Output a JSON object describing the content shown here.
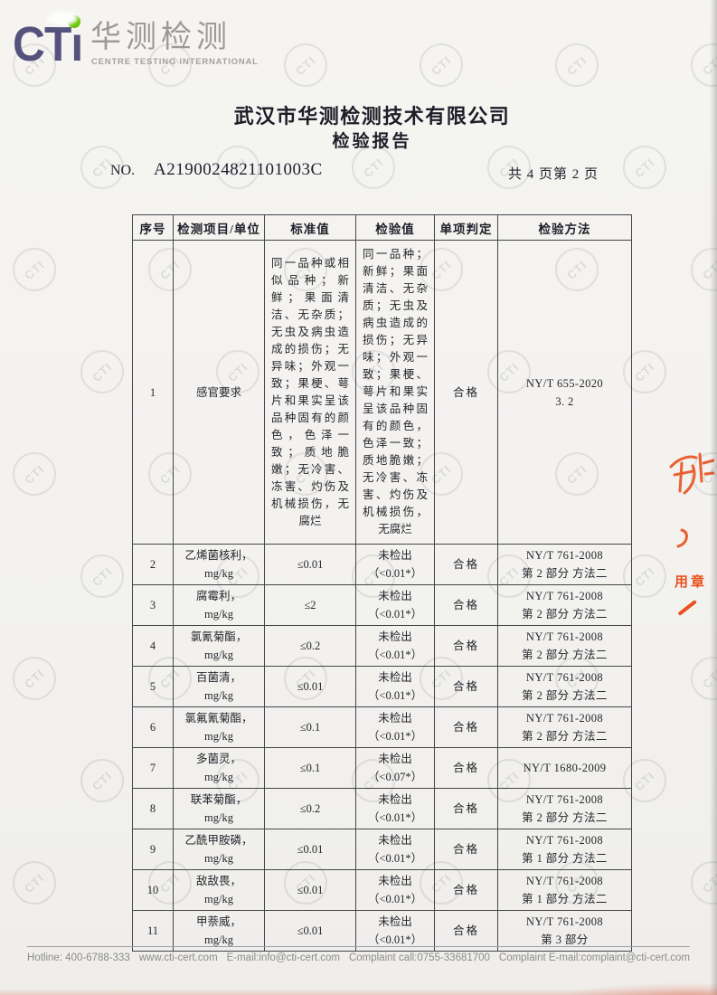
{
  "logo": {
    "acronym": "CT",
    "acronym_i": "ı",
    "watermark_text": "CTI",
    "cn": "华测检测",
    "en": "CENTRE TESTING INTERNATIONAL"
  },
  "header": {
    "company": "武汉市华测检测技术有限公司",
    "title": "检验报告",
    "no_label": "NO.",
    "report_no": "A2190024821101003C",
    "page_info": "共 4 页第 2 页"
  },
  "table": {
    "headers": [
      "序号",
      "检测项目/单位",
      "标准值",
      "检验值",
      "单项判定",
      "检验方法"
    ],
    "rows": [
      {
        "no": "1",
        "item": "感官要求",
        "standard": "同一品种或相似品种；新鲜；果面清洁、无杂质；无虫及病虫造成的损伤；无异味；外观一致；果梗、萼片和果实呈该品种固有的颜色，色泽一致；质地脆嫩；无冷害、冻害、灼伤及机械损伤，无腐烂",
        "value": "同一品种；新鲜；果面清洁、无杂质；无虫及病虫造成的损伤；无异味；外观一致；果梗、萼片和果实呈该品种固有的颜色，色泽一致；质地脆嫩；无冷害、冻害、灼伤及机械损伤，无腐烂",
        "judgment": "合格",
        "method": "NY/T 655-2020\n3. 2"
      },
      {
        "no": "2",
        "item": "乙烯菌核利，\nmg/kg",
        "standard": "≤0.01",
        "value": "未检出\n（<0.01*）",
        "judgment": "合格",
        "method": "NY/T 761-2008\n第 2 部分 方法二"
      },
      {
        "no": "3",
        "item": "腐霉利，\nmg/kg",
        "standard": "≤2",
        "value": "未检出\n（<0.01*）",
        "judgment": "合格",
        "method": "NY/T 761-2008\n第 2 部分 方法二"
      },
      {
        "no": "4",
        "item": "氯氰菊酯，\nmg/kg",
        "standard": "≤0.2",
        "value": "未检出\n（<0.01*）",
        "judgment": "合格",
        "method": "NY/T 761-2008\n第 2 部分 方法二"
      },
      {
        "no": "5",
        "item": "百菌清，\nmg/kg",
        "standard": "≤0.01",
        "value": "未检出\n（<0.01*）",
        "judgment": "合格",
        "method": "NY/T 761-2008\n第 2 部分 方法二"
      },
      {
        "no": "6",
        "item": "氯氟氰菊酯，\nmg/kg",
        "standard": "≤0.1",
        "value": "未检出\n（<0.01*）",
        "judgment": "合格",
        "method": "NY/T 761-2008\n第 2 部分 方法二"
      },
      {
        "no": "7",
        "item": "多菌灵，\nmg/kg",
        "standard": "≤0.1",
        "value": "未检出\n（<0.07*）",
        "judgment": "合格",
        "method": "NY/T 1680-2009"
      },
      {
        "no": "8",
        "item": "联苯菊酯，\nmg/kg",
        "standard": "≤0.2",
        "value": "未检出\n（<0.01*）",
        "judgment": "合格",
        "method": "NY/T 761-2008\n第 2 部分 方法二"
      },
      {
        "no": "9",
        "item": "乙酰甲胺磷，\nmg/kg",
        "standard": "≤0.01",
        "value": "未检出\n（<0.01*）",
        "judgment": "合格",
        "method": "NY/T 761-2008\n第 1 部分 方法二"
      },
      {
        "no": "10",
        "item": "敌敌畏，\nmg/kg",
        "standard": "≤0.01",
        "value": "未检出\n（<0.01*）",
        "judgment": "合格",
        "method": "NY/T 761-2008\n第 1 部分 方法二"
      },
      {
        "no": "11",
        "item": "甲萘威，\nmg/kg",
        "standard": "≤0.01",
        "value": "未检出\n（<0.01*）",
        "judgment": "合格",
        "method": "NY/T 761-2008\n第 3 部分"
      }
    ]
  },
  "stamp": {
    "text": "用章",
    "color": "#e8511d"
  },
  "footer": {
    "items": [
      "Hotline: 400-6788-333",
      "www.cti-cert.com",
      "E-mail:info@cti-cert.com",
      "Complaint call:0755-33681700",
      "Complaint E-mail:complaint@cti-cert.com"
    ]
  },
  "colors": {
    "logo_blue": "#55537d",
    "dot_green": "#62c500",
    "logo_gray": "#9b9a97",
    "stamp_red": "#e8511d",
    "paper": "#f3f2ef"
  }
}
